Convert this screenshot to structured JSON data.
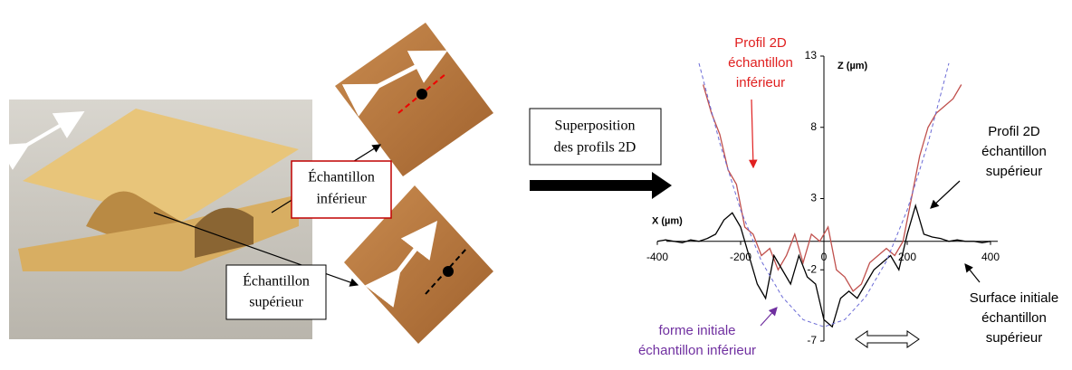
{
  "boxes": {
    "lower_sample": [
      "Échantillon",
      "inférieur"
    ],
    "upper_sample": [
      "Échantillon",
      "supérieur"
    ],
    "superposition": [
      "Superposition",
      "des profils 2D"
    ]
  },
  "chart_data": {
    "type": "line",
    "xlabel": "X (µm)",
    "ylabel": "Z (µm)",
    "xlim": [
      -400,
      400
    ],
    "ylim": [
      -7,
      13
    ],
    "xticks": [
      -400,
      -200,
      0,
      200,
      400
    ],
    "yticks": [
      -7,
      -2,
      3,
      8,
      13
    ],
    "series": [
      {
        "color": "#c0504d",
        "x": [
          -290,
          -270,
          -250,
          -230,
          -210,
          -190,
          -170,
          -150,
          -130,
          -110,
          -90,
          -70,
          -50,
          -30,
          -10,
          10,
          30,
          50,
          70,
          90,
          110,
          130,
          150,
          170,
          190,
          210,
          230,
          250,
          270,
          290,
          310,
          330
        ],
        "values": [
          11,
          9,
          7.5,
          5,
          4,
          1,
          0.5,
          -1,
          -0.5,
          -2,
          -1,
          0.5,
          -1.5,
          0.5,
          0,
          1,
          -2,
          -2.5,
          -3.5,
          -3,
          -1.5,
          -1,
          -0.5,
          -1,
          0,
          3,
          6,
          8,
          9,
          9.5,
          10,
          11
        ]
      },
      {
        "color": "#000000",
        "x": [
          -400,
          -380,
          -360,
          -340,
          -320,
          -300,
          -280,
          -260,
          -240,
          -220,
          -200,
          -180,
          -160,
          -140,
          -120,
          -100,
          -80,
          -60,
          -40,
          -20,
          0,
          20,
          40,
          60,
          80,
          100,
          120,
          140,
          160,
          180,
          200,
          220,
          240,
          260,
          280,
          300,
          320,
          340,
          360,
          380,
          400
        ],
        "values": [
          0,
          0.1,
          0,
          -0.1,
          0.1,
          0,
          0.2,
          0.5,
          1.5,
          2,
          1,
          -1,
          -3,
          -4,
          -1,
          -2,
          -3,
          -1,
          -2.5,
          -3,
          -5.5,
          -6,
          -4,
          -3.5,
          -4,
          -3,
          -2,
          -1.5,
          -1,
          -2,
          0.5,
          2.5,
          0.5,
          0.3,
          0.2,
          0,
          0.1,
          0,
          0,
          -0.1,
          0
        ]
      },
      {
        "color": "#6b6bd6",
        "dashed": true,
        "x": [
          -300,
          -250,
          -200,
          -150,
          -100,
          -50,
          0,
          50,
          100,
          150,
          200,
          250,
          300
        ],
        "values": [
          12.5,
          6.9,
          2.2,
          -1.4,
          -3.9,
          -5.5,
          -6,
          -5.5,
          -3.9,
          -1.4,
          2.2,
          6.9,
          12.5
        ]
      }
    ],
    "annotations": [
      {
        "text": [
          "Profil 2D",
          "échantillon",
          "inférieur"
        ],
        "color": "#e02020"
      },
      {
        "text": [
          "Profil 2D",
          "échantillon",
          "supérieur"
        ],
        "color": "#000000"
      },
      {
        "text": [
          "Surface initiale",
          "échantillon",
          "supérieur"
        ],
        "color": "#000000"
      },
      {
        "text": [
          "forme initiale",
          "échantillon inférieur"
        ],
        "color": "#7030a0"
      }
    ]
  }
}
